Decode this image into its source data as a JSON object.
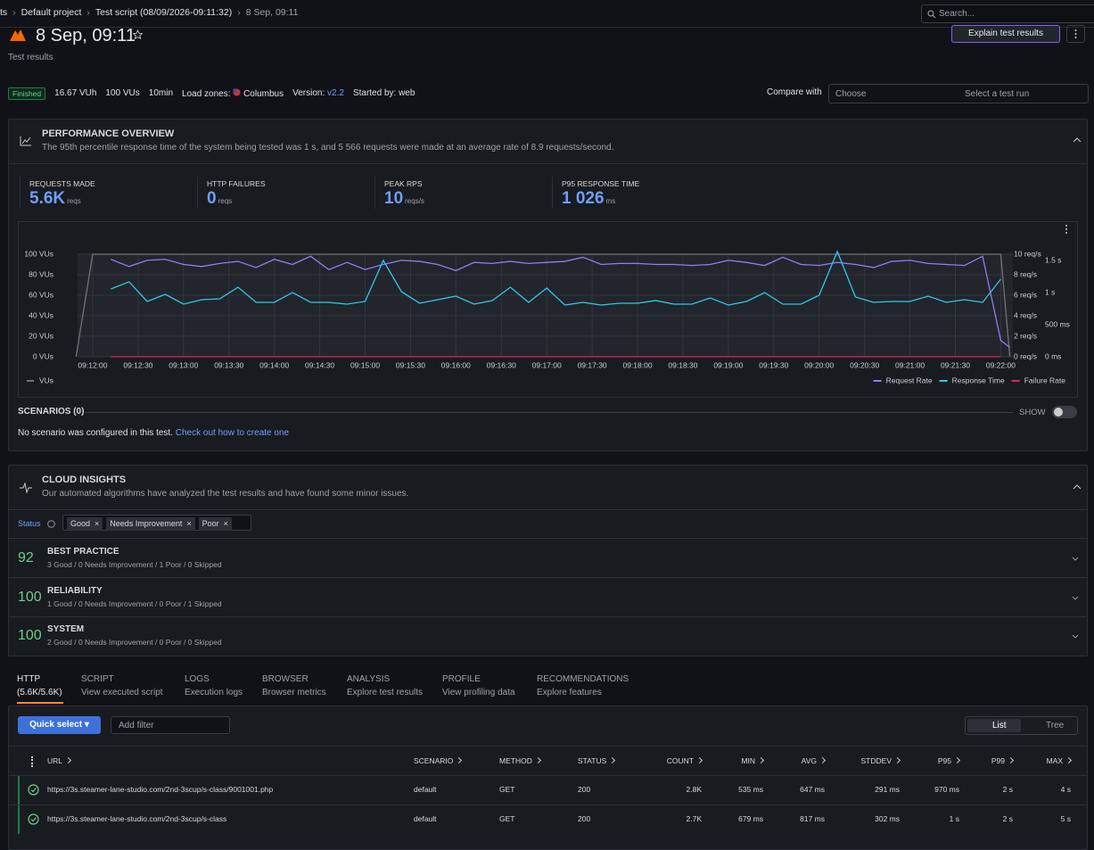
{
  "breadcrumb": [
    "ts",
    "Default project",
    "Test script (08/09/2026-09:11:32)",
    "8 Sep, 09:11"
  ],
  "search_placeholder": "Search...",
  "header": {
    "title": "8 Sep, 09:11",
    "subtitle": "Test results",
    "explain_button": "Explain test results"
  },
  "summary": {
    "status": "Finished",
    "vuh": "16.67 VUh",
    "vus": "100 VUs",
    "duration": "10min",
    "load_zones_label": "Load zones:",
    "load_zone": "Columbus",
    "version_label": "Version:",
    "version": "v2.2",
    "started_by": "Started by: web"
  },
  "compare": {
    "label": "Compare with",
    "choose": "Choose",
    "select": "Select a test run"
  },
  "performance_overview": {
    "title": "PERFORMANCE OVERVIEW",
    "description": "The 95th percentile response time of the system being tested was 1 s, and 5 566 requests were made at an average rate of 8.9 requests/second.",
    "metrics": [
      {
        "label": "REQUESTS MADE",
        "value": "5.6K",
        "unit": "reqs"
      },
      {
        "label": "HTTP FAILURES",
        "value": "0",
        "unit": "reqs"
      },
      {
        "label": "PEAK RPS",
        "value": "10",
        "unit": "reqs/s"
      },
      {
        "label": "P95 RESPONSE TIME",
        "value": "1 026",
        "unit": "ms"
      }
    ],
    "scenarios": {
      "title": "SCENARIOS (0)",
      "toggle": "SHOW",
      "empty": "No scenario was configured in this test.",
      "link": "Check out how to create one"
    }
  },
  "chart_data": {
    "type": "line",
    "x": [
      "09:12:12",
      "09:12:24",
      "09:12:36",
      "09:12:48",
      "09:13:00",
      "09:13:12",
      "09:13:24",
      "09:13:36",
      "09:13:48",
      "09:14:00",
      "09:14:12",
      "09:14:24",
      "09:14:36",
      "09:14:48",
      "09:15:00",
      "09:15:12",
      "09:15:24",
      "09:15:36",
      "09:15:48",
      "09:16:00",
      "09:16:12",
      "09:16:24",
      "09:16:36",
      "09:16:48",
      "09:17:00",
      "09:17:12",
      "09:17:24",
      "09:17:36",
      "09:17:48",
      "09:18:00",
      "09:18:12",
      "09:18:24",
      "09:18:36",
      "09:18:48",
      "09:19:00",
      "09:19:12",
      "09:19:24",
      "09:19:36",
      "09:19:48",
      "09:20:00",
      "09:20:12",
      "09:20:24",
      "09:20:36",
      "09:20:48",
      "09:21:00",
      "09:21:12",
      "09:21:24",
      "09:21:36",
      "09:21:48",
      "09:22:00",
      "09:22:06"
    ],
    "xlim": [
      "09:11:50",
      "09:22:08"
    ],
    "xticks": [
      "09:12:00",
      "09:12:30",
      "09:13:00",
      "09:13:30",
      "09:14:00",
      "09:14:30",
      "09:15:00",
      "09:15:30",
      "09:16:00",
      "09:16:30",
      "09:17:00",
      "09:17:30",
      "09:18:00",
      "09:18:30",
      "09:19:00",
      "09:19:30",
      "09:20:00",
      "09:20:30",
      "09:21:00",
      "09:21:30",
      "09:22:00"
    ],
    "ylim": [
      0,
      100
    ],
    "yticks": [
      {
        "value": 0,
        "label": "0 VUs"
      },
      {
        "value": 20,
        "label": "20 VUs"
      },
      {
        "value": 40,
        "label": "40 VUs"
      },
      {
        "value": 60,
        "label": "60 VUs"
      },
      {
        "value": 80,
        "label": "80 VUs"
      },
      {
        "value": 100,
        "label": "100 VUs"
      }
    ],
    "y2lim": [
      0,
      10
    ],
    "y2ticks": [
      {
        "value": 0,
        "label": "0 req/s"
      },
      {
        "value": 2,
        "label": "2 req/s"
      },
      {
        "value": 4,
        "label": "4 req/s"
      },
      {
        "value": 6,
        "label": "6 req/s"
      },
      {
        "value": 8,
        "label": "8 req/s"
      },
      {
        "value": 10,
        "label": "10 req/s"
      }
    ],
    "y3lim": [
      0,
      1600
    ],
    "y3ticks": [
      {
        "value": 0,
        "label": "0 ms"
      },
      {
        "value": 500,
        "label": "500 ms"
      },
      {
        "value": 1000,
        "label": "1 s"
      },
      {
        "value": 1500,
        "label": "1.5 s"
      }
    ],
    "grid": true,
    "series": [
      {
        "name": "VUs",
        "color": "#737373",
        "axis": "y",
        "x": [
          "09:11:49",
          "09:12:00",
          "09:22:00",
          "09:22:06"
        ],
        "values": [
          0,
          100,
          100,
          0
        ]
      },
      {
        "name": "Request Rate",
        "color": "#8f7cf5",
        "axis": "y2",
        "values": [
          9.5,
          8.8,
          9.4,
          9.5,
          9.0,
          8.8,
          9.1,
          9.3,
          8.7,
          9.5,
          9.0,
          9.8,
          8.5,
          9.2,
          8.5,
          9.0,
          9.4,
          9.3,
          9.0,
          8.4,
          9.2,
          9.1,
          9.3,
          9.1,
          9.2,
          9.3,
          9.7,
          9.0,
          9.1,
          9.1,
          9.0,
          9.0,
          8.9,
          9.0,
          9.4,
          9.2,
          8.9,
          9.7,
          9.0,
          8.9,
          9.2,
          9.0,
          8.7,
          9.3,
          9.4,
          9.1,
          9.0,
          8.9,
          9.8,
          1.6,
          0.9
        ]
      },
      {
        "name": "Response Time",
        "color": "#2ec8ee",
        "axis": "y3",
        "values": [
          1057,
          1169,
          863,
          974,
          821,
          890,
          904,
          1085,
          849,
          849,
          1002,
          849,
          849,
          821,
          863,
          1503,
          1016,
          835,
          890,
          946,
          821,
          877,
          1085,
          849,
          1071,
          807,
          849,
          807,
          835,
          835,
          877,
          821,
          821,
          918,
          807,
          863,
          1002,
          821,
          821,
          960,
          1642,
          932,
          849,
          863,
          863,
          946,
          849,
          890,
          849,
          1210,
          null
        ]
      },
      {
        "name": "Failure Rate",
        "color": "#e0245e",
        "axis": "y2",
        "values": [
          0,
          0,
          0,
          0,
          0,
          0,
          0,
          0,
          0,
          0,
          0,
          0,
          0,
          0,
          0,
          0,
          0,
          0,
          0,
          0,
          0,
          0,
          0,
          0,
          0,
          0,
          0,
          0,
          0,
          0,
          0,
          0,
          0,
          0,
          0,
          0,
          0,
          0,
          0,
          0,
          0,
          0,
          0,
          0,
          0,
          0,
          0,
          0,
          0,
          0,
          null
        ]
      }
    ]
  },
  "cloud_insights": {
    "title": "CLOUD INSIGHTS",
    "description": "Our automated algorithms have analyzed the test results and have found some minor issues.",
    "filter_label": "Status",
    "filters": [
      "Good",
      "Needs Improvement",
      "Poor"
    ],
    "categories": [
      {
        "score": "92",
        "title": "BEST PRACTICE",
        "summary": "3 Good / 0 Needs Improvement / 1 Poor / 0 Skipped"
      },
      {
        "score": "100",
        "title": "RELIABILITY",
        "summary": "1 Good / 0 Needs Improvement / 0 Poor / 1 Skipped"
      },
      {
        "score": "100",
        "title": "SYSTEM",
        "summary": "2 Good / 0 Needs Improvement / 0 Poor / 0 Skipped"
      }
    ]
  },
  "tabs": [
    {
      "label": "HTTP",
      "sub": "(5.6K/5.6K)"
    },
    {
      "label": "SCRIPT",
      "sub": "View executed script"
    },
    {
      "label": "LOGS",
      "sub": "Execution logs"
    },
    {
      "label": "BROWSER",
      "sub": "Browser metrics"
    },
    {
      "label": "ANALYSIS",
      "sub": "Explore test results"
    },
    {
      "label": "PROFILE",
      "sub": "View profiling data"
    },
    {
      "label": "RECOMMENDATIONS",
      "sub": "Explore features"
    }
  ],
  "toolbar": {
    "quick_select": "Quick select",
    "filter_placeholder": "Add filter",
    "views": [
      "List",
      "Tree"
    ]
  },
  "table": {
    "columns": [
      "URL",
      "SCENARIO",
      "METHOD",
      "STATUS",
      "COUNT",
      "MIN",
      "AVG",
      "STDDEV",
      "P95",
      "P99",
      "MAX"
    ],
    "rows": [
      [
        "https://3s.steamer-lane-studio.com/2nd-3scup/s-class/9001001.php",
        "default",
        "GET",
        "200",
        "2.8K",
        "535 ms",
        "647 ms",
        "291 ms",
        "970 ms",
        "2 s",
        "4 s"
      ],
      [
        "https://3s.steamer-lane-studio.com/2nd-3scup/s-class",
        "default",
        "GET",
        "200",
        "2.7K",
        "679 ms",
        "817 ms",
        "302 ms",
        "1 s",
        "2 s",
        "5 s"
      ]
    ]
  }
}
